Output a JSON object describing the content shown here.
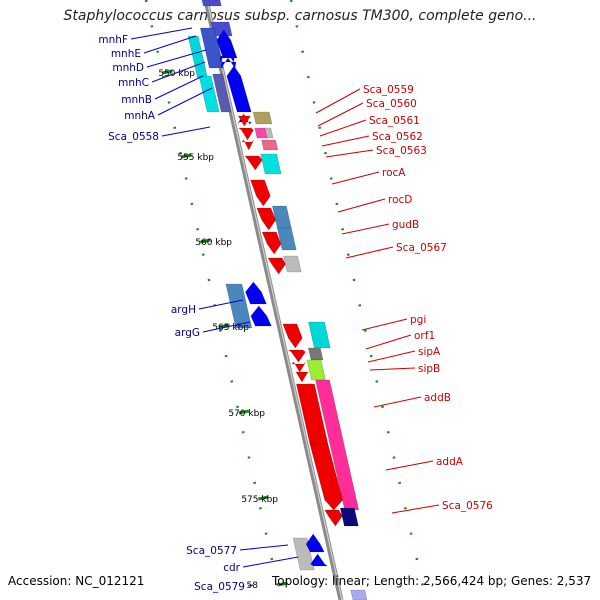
{
  "title": "Staphylococcus carnosus subsp. carnosus TM300, complete geno...",
  "footer": {
    "accession": "Accession: NC_012121",
    "summary": "Topology: linear; Length: 2,566,424 bp; Genes: 2,537"
  },
  "colors": {
    "backbone": "#8a8a8a",
    "forward_gene": "#0000ee",
    "reverse_gene": "#ee0000",
    "left_label": "#00008b",
    "right_label": "#cc0000",
    "tick": "#1a8a1a"
  },
  "ticks": [
    {
      "label": "550 kbp"
    },
    {
      "label": "555 kbp"
    },
    {
      "label": "560 kbp"
    },
    {
      "label": "565 kbp"
    },
    {
      "label": "570 kbp"
    },
    {
      "label": "575 kbp"
    },
    {
      "label": "58"
    }
  ],
  "genes_left": [
    {
      "name": "mnhF"
    },
    {
      "name": "mnhE"
    },
    {
      "name": "mnhD"
    },
    {
      "name": "mnhC"
    },
    {
      "name": "mnhB"
    },
    {
      "name": "mnhA"
    },
    {
      "name": "Sca_0558"
    },
    {
      "name": "argH"
    },
    {
      "name": "argG"
    },
    {
      "name": "Sca_0577"
    },
    {
      "name": "cdr"
    },
    {
      "name": "Sca_0579"
    }
  ],
  "genes_right": [
    {
      "name": "Sca_0559"
    },
    {
      "name": "Sca_0560"
    },
    {
      "name": "Sca_0561"
    },
    {
      "name": "Sca_0562"
    },
    {
      "name": "Sca_0563"
    },
    {
      "name": "rocA"
    },
    {
      "name": "rocD"
    },
    {
      "name": "gudB"
    },
    {
      "name": "Sca_0567"
    },
    {
      "name": "pgi"
    },
    {
      "name": "orf1"
    },
    {
      "name": "sipA"
    },
    {
      "name": "sipB"
    },
    {
      "name": "addB"
    },
    {
      "name": "addA"
    },
    {
      "name": "Sca_0576"
    }
  ]
}
